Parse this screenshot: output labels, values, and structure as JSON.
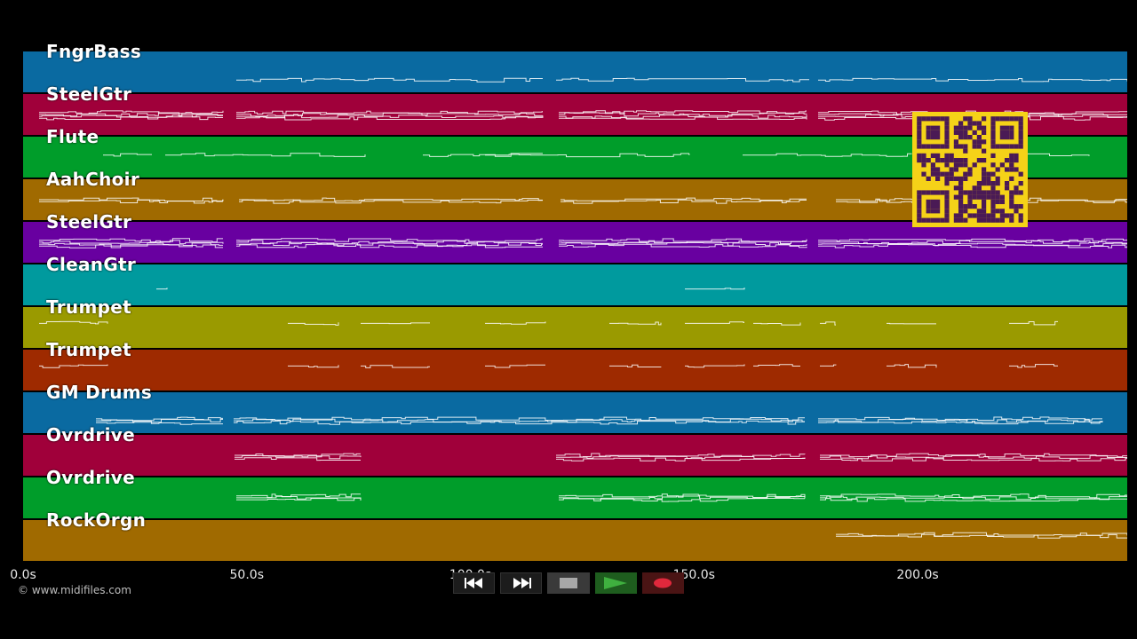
{
  "tracks": [
    {
      "name": "FngrBass",
      "color": "#0a6aa1",
      "style": "bass"
    },
    {
      "name": "SteelGtr",
      "color": "#a0003a",
      "style": "chords"
    },
    {
      "name": "Flute",
      "color": "#009d2a",
      "style": "melody"
    },
    {
      "name": "AahChoir",
      "color": "#a06a00",
      "style": "pad"
    },
    {
      "name": "SteelGtr",
      "color": "#6800a0",
      "style": "chords"
    },
    {
      "name": "CleanGtr",
      "color": "#009a9e",
      "style": "sparse"
    },
    {
      "name": "Trumpet",
      "color": "#9a9a00",
      "style": "phrases"
    },
    {
      "name": "Trumpet",
      "color": "#9e2a00",
      "style": "phrases"
    },
    {
      "name": "GM Drums",
      "color": "#0a6aa1",
      "style": "drums"
    },
    {
      "name": "Ovrdrive",
      "color": "#a0003a",
      "style": "ovr1"
    },
    {
      "name": "Ovrdrive",
      "color": "#009d2a",
      "style": "ovr2"
    },
    {
      "name": "RockOrgn",
      "color": "#a06a00",
      "style": "organ"
    }
  ],
  "time_axis": {
    "ticks": [
      "0.0s",
      "50.0s",
      "100.0s",
      "150.0s",
      "200.0s"
    ]
  },
  "copyright": "© www.midifiles.com",
  "transport": {
    "rewind_icon": "rewind-icon",
    "fast_forward_icon": "fast-forward-icon",
    "stop_icon": "stop-icon",
    "play_icon": "play-icon",
    "record_icon": "record-icon"
  },
  "qr_icon": "qr-code-icon"
}
